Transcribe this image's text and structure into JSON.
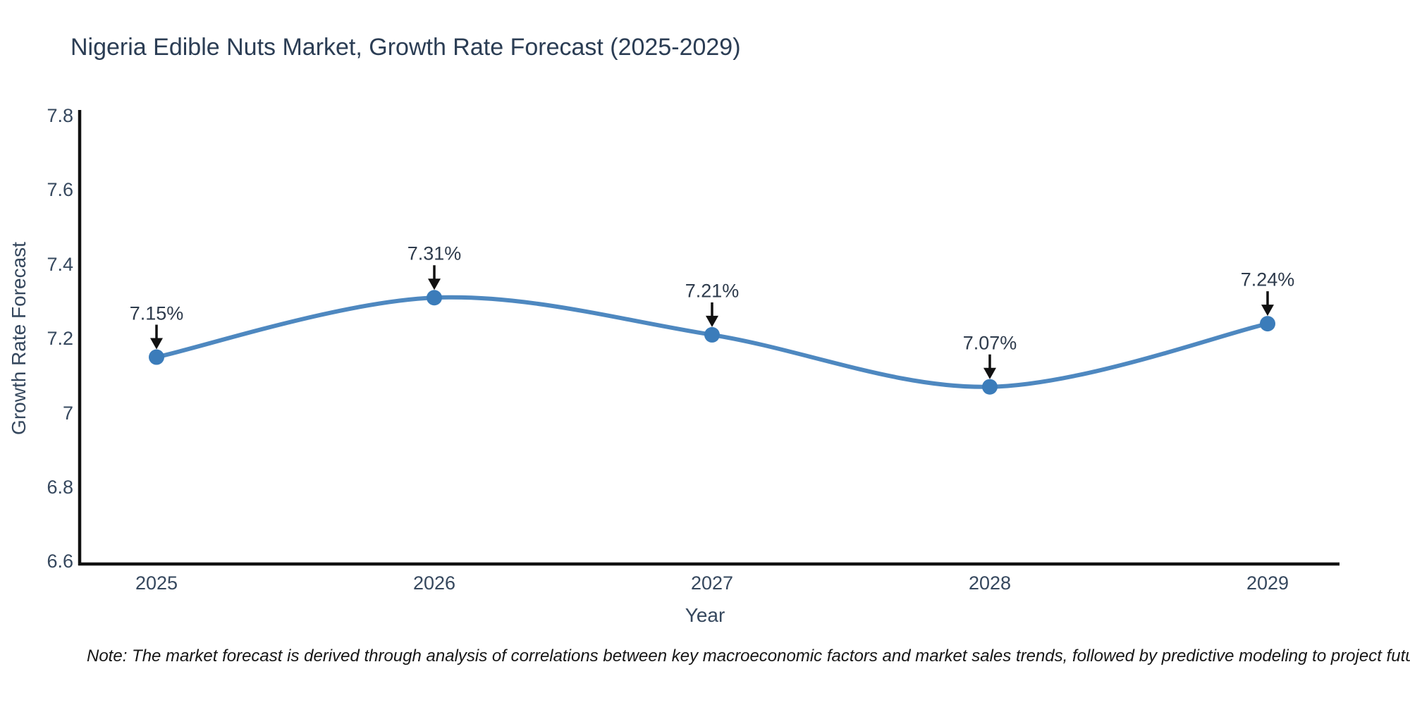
{
  "title": "Nigeria Edible Nuts Market, Growth Rate Forecast (2025-2029)",
  "axes": {
    "x_label": "Year",
    "y_label": "Growth Rate Forecast",
    "y_tick_labels": [
      "7.8",
      "7.6",
      "7.4",
      "7.2",
      "7",
      "6.8",
      "6.6"
    ],
    "y_tick_values": [
      7.8,
      7.6,
      7.4,
      7.2,
      7.0,
      6.8,
      6.6
    ]
  },
  "note": "Note: The market forecast is derived through analysis of correlations between key macroeconomic factors and market sales trends, followed by predictive modeling to project future sales",
  "colors": {
    "line": "#4e88c0",
    "marker": "#3b7cba",
    "axis": "#111111",
    "title_text": "#2b3d54",
    "tick_text": "#36485e",
    "annotation_text": "#2e3b4c",
    "arrow": "#111111"
  },
  "chart_data": {
    "type": "line",
    "x": [
      2025,
      2026,
      2027,
      2028,
      2029
    ],
    "x_tick_labels": [
      "2025",
      "2026",
      "2027",
      "2028",
      "2029"
    ],
    "series": [
      {
        "name": "Growth Rate Forecast",
        "values": [
          7.15,
          7.31,
          7.21,
          7.07,
          7.24
        ],
        "point_labels": [
          "7.15%",
          "7.31%",
          "7.21%",
          "7.07%",
          "7.24%"
        ]
      }
    ],
    "title": "Nigeria Edible Nuts Market, Growth Rate Forecast (2025-2029)",
    "xlabel": "Year",
    "ylabel": "Growth Rate Forecast",
    "ylim": [
      6.6,
      7.8
    ],
    "line_shape": "spline",
    "markers": true,
    "grid": false,
    "legend": false,
    "annotations": "value labels with downward arrows above each point"
  }
}
